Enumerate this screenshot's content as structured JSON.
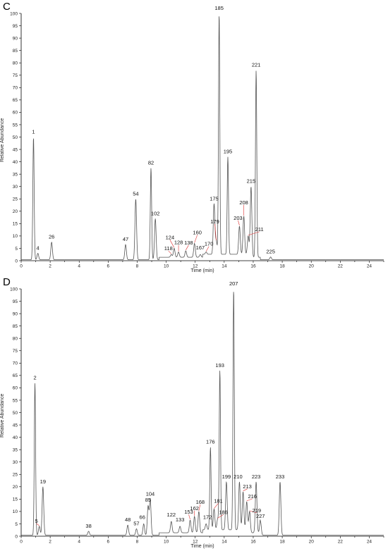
{
  "chart_data": [
    {
      "type": "line",
      "panel_label": "C",
      "xlabel": "Time (min)",
      "ylabel": "Relative Abundance",
      "xlim": [
        0,
        25
      ],
      "ylim": [
        0,
        100
      ],
      "x_ticks": [
        0,
        2,
        4,
        6,
        8,
        10,
        12,
        14,
        16,
        18,
        20,
        22,
        24
      ],
      "y_ticks": [
        0,
        5,
        10,
        15,
        20,
        25,
        30,
        35,
        40,
        45,
        50,
        55,
        60,
        65,
        70,
        75,
        80,
        85,
        90,
        95,
        100
      ],
      "peaks": [
        {
          "label": "1",
          "x": 0.85,
          "y": 50
        },
        {
          "label": "4",
          "x": 1.15,
          "y": 3
        },
        {
          "label": "26",
          "x": 2.1,
          "y": 7.5
        },
        {
          "label": "47",
          "x": 7.2,
          "y": 6.5
        },
        {
          "label": "54",
          "x": 7.9,
          "y": 25
        },
        {
          "label": "82",
          "x": 8.95,
          "y": 37.5
        },
        {
          "label": "102",
          "x": 9.25,
          "y": 17
        },
        {
          "label": "118",
          "x": 10.35,
          "y": 2.5
        },
        {
          "label": "124",
          "x": 10.55,
          "y": 5
        },
        {
          "label": "128",
          "x": 10.85,
          "y": 3.5
        },
        {
          "label": "138",
          "x": 11.35,
          "y": 4
        },
        {
          "label": "160",
          "x": 11.95,
          "y": 7
        },
        {
          "label": "167",
          "x": 12.35,
          "y": 2.5
        },
        {
          "label": "170",
          "x": 12.75,
          "y": 3.5
        },
        {
          "label": "179",
          "x": 13.45,
          "y": 8
        },
        {
          "label": "175",
          "x": 13.3,
          "y": 23
        },
        {
          "label": "185",
          "x": 13.65,
          "y": 100
        },
        {
          "label": "195",
          "x": 14.25,
          "y": 42
        },
        {
          "label": "203",
          "x": 15.05,
          "y": 14
        },
        {
          "label": "208",
          "x": 15.35,
          "y": 18
        },
        {
          "label": "211",
          "x": 15.65,
          "y": 10
        },
        {
          "label": "215",
          "x": 15.85,
          "y": 30
        },
        {
          "label": "221",
          "x": 16.2,
          "y": 77
        },
        {
          "label": "225",
          "x": 17.2,
          "y": 1.5
        }
      ]
    },
    {
      "type": "line",
      "panel_label": "D",
      "xlabel": "Time (min)",
      "ylabel": "Relative Abundance",
      "xlim": [
        0,
        25
      ],
      "ylim": [
        0,
        100
      ],
      "x_ticks": [
        0,
        2,
        4,
        6,
        8,
        10,
        12,
        14,
        16,
        18,
        20,
        22,
        24
      ],
      "y_ticks": [
        0,
        5,
        10,
        15,
        20,
        25,
        30,
        35,
        40,
        45,
        50,
        55,
        60,
        65,
        70,
        75,
        80,
        85,
        90,
        95,
        100
      ],
      "peaks": [
        {
          "label": "2",
          "x": 0.95,
          "y": 62
        },
        {
          "label": "5",
          "x": 1.25,
          "y": 4
        },
        {
          "label": "19",
          "x": 1.5,
          "y": 20
        },
        {
          "label": "38",
          "x": 4.65,
          "y": 2
        },
        {
          "label": "48",
          "x": 7.35,
          "y": 4.5
        },
        {
          "label": "57",
          "x": 7.95,
          "y": 3
        },
        {
          "label": "66",
          "x": 8.45,
          "y": 5
        },
        {
          "label": "85",
          "x": 8.75,
          "y": 12
        },
        {
          "label": "104",
          "x": 8.9,
          "y": 15
        },
        {
          "label": "122",
          "x": 10.35,
          "y": 6
        },
        {
          "label": "133",
          "x": 10.95,
          "y": 4
        },
        {
          "label": "153",
          "x": 11.65,
          "y": 6.5
        },
        {
          "label": "162",
          "x": 11.95,
          "y": 8
        },
        {
          "label": "168",
          "x": 12.25,
          "y": 10
        },
        {
          "label": "172",
          "x": 12.75,
          "y": 5
        },
        {
          "label": "176",
          "x": 13.05,
          "y": 36
        },
        {
          "label": "181",
          "x": 13.3,
          "y": 11
        },
        {
          "label": "186",
          "x": 13.55,
          "y": 7
        },
        {
          "label": "193",
          "x": 13.7,
          "y": 67
        },
        {
          "label": "199",
          "x": 14.15,
          "y": 22
        },
        {
          "label": "207",
          "x": 14.65,
          "y": 100
        },
        {
          "label": "210",
          "x": 15.05,
          "y": 22
        },
        {
          "label": "213",
          "x": 15.3,
          "y": 18
        },
        {
          "label": "216",
          "x": 15.55,
          "y": 14
        },
        {
          "label": "219",
          "x": 15.75,
          "y": 10
        },
        {
          "label": "223",
          "x": 16.2,
          "y": 22
        },
        {
          "label": "227",
          "x": 16.5,
          "y": 6
        },
        {
          "label": "233",
          "x": 17.85,
          "y": 22
        }
      ]
    }
  ]
}
